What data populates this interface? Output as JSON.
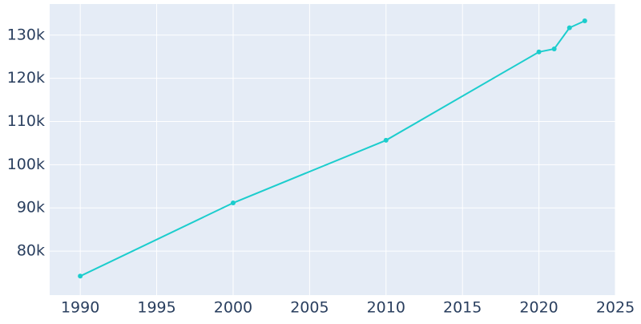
{
  "chart_data": {
    "type": "line",
    "x": [
      1990,
      2000,
      2010,
      2020,
      2021,
      2022,
      2023
    ],
    "series": [
      {
        "color": "#1ccdcd",
        "values": [
          74200,
          91150,
          105650,
          126100,
          126800,
          131700,
          133300
        ]
      }
    ],
    "xlim": [
      1988,
      2025
    ],
    "xticks": [
      1990,
      1995,
      2000,
      2005,
      2010,
      2015,
      2020,
      2025
    ],
    "ylim": [
      69800,
      137200
    ],
    "yticks": [
      {
        "value": 80000,
        "label": "80k"
      },
      {
        "value": 90000,
        "label": "90k"
      },
      {
        "value": 100000,
        "label": "100k"
      },
      {
        "value": 110000,
        "label": "110k"
      },
      {
        "value": 120000,
        "label": "120k"
      },
      {
        "value": 130000,
        "label": "130k"
      }
    ],
    "grid": true
  }
}
